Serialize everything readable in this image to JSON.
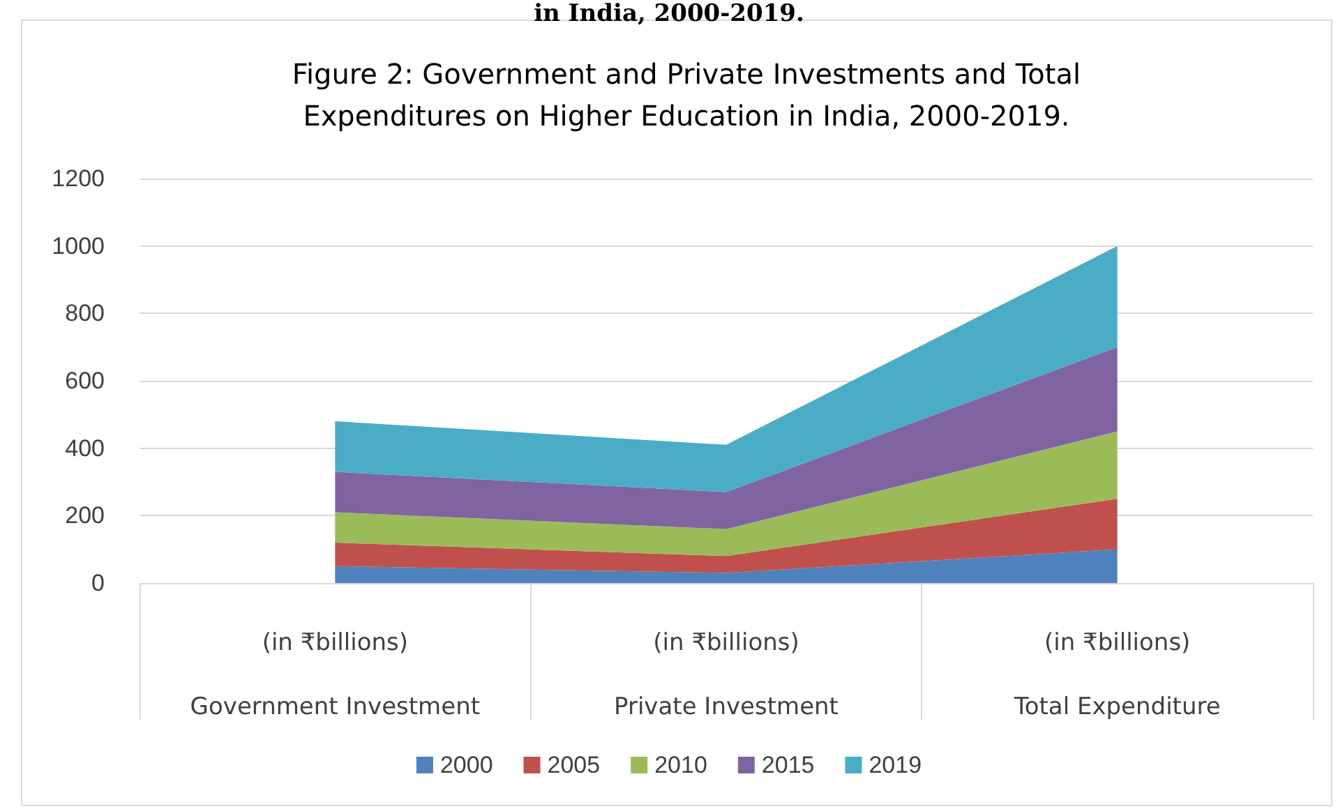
{
  "chart_data": {
    "type": "area",
    "stacked": true,
    "title": "Figure 2: Government and Private Investments and Total\nExpenditures on Higher Education in India, 2000-2019.",
    "annotations": [
      "in India, 2000-2019."
    ],
    "categories": [
      "(in ₹billions)\nGovernment Investment",
      "(in ₹billions)\nPrivate Investment",
      "(in ₹billions)\nTotal Expenditure"
    ],
    "series": [
      {
        "name": "2000",
        "color": "#4f81bd",
        "values": [
          50,
          30,
          100
        ]
      },
      {
        "name": "2005",
        "color": "#c0504d",
        "values": [
          70,
          50,
          150
        ]
      },
      {
        "name": "2010",
        "color": "#9bbb59",
        "values": [
          90,
          80,
          200
        ]
      },
      {
        "name": "2015",
        "color": "#8064a2",
        "values": [
          120,
          110,
          250
        ]
      },
      {
        "name": "2019",
        "color": "#4bacc6",
        "values": [
          150,
          140,
          300
        ]
      }
    ],
    "ylim": [
      0,
      1200
    ],
    "yticks": [
      0,
      200,
      400,
      600,
      800,
      1000,
      1200
    ],
    "grid": "y",
    "legend": "bottom",
    "marker": "none"
  }
}
